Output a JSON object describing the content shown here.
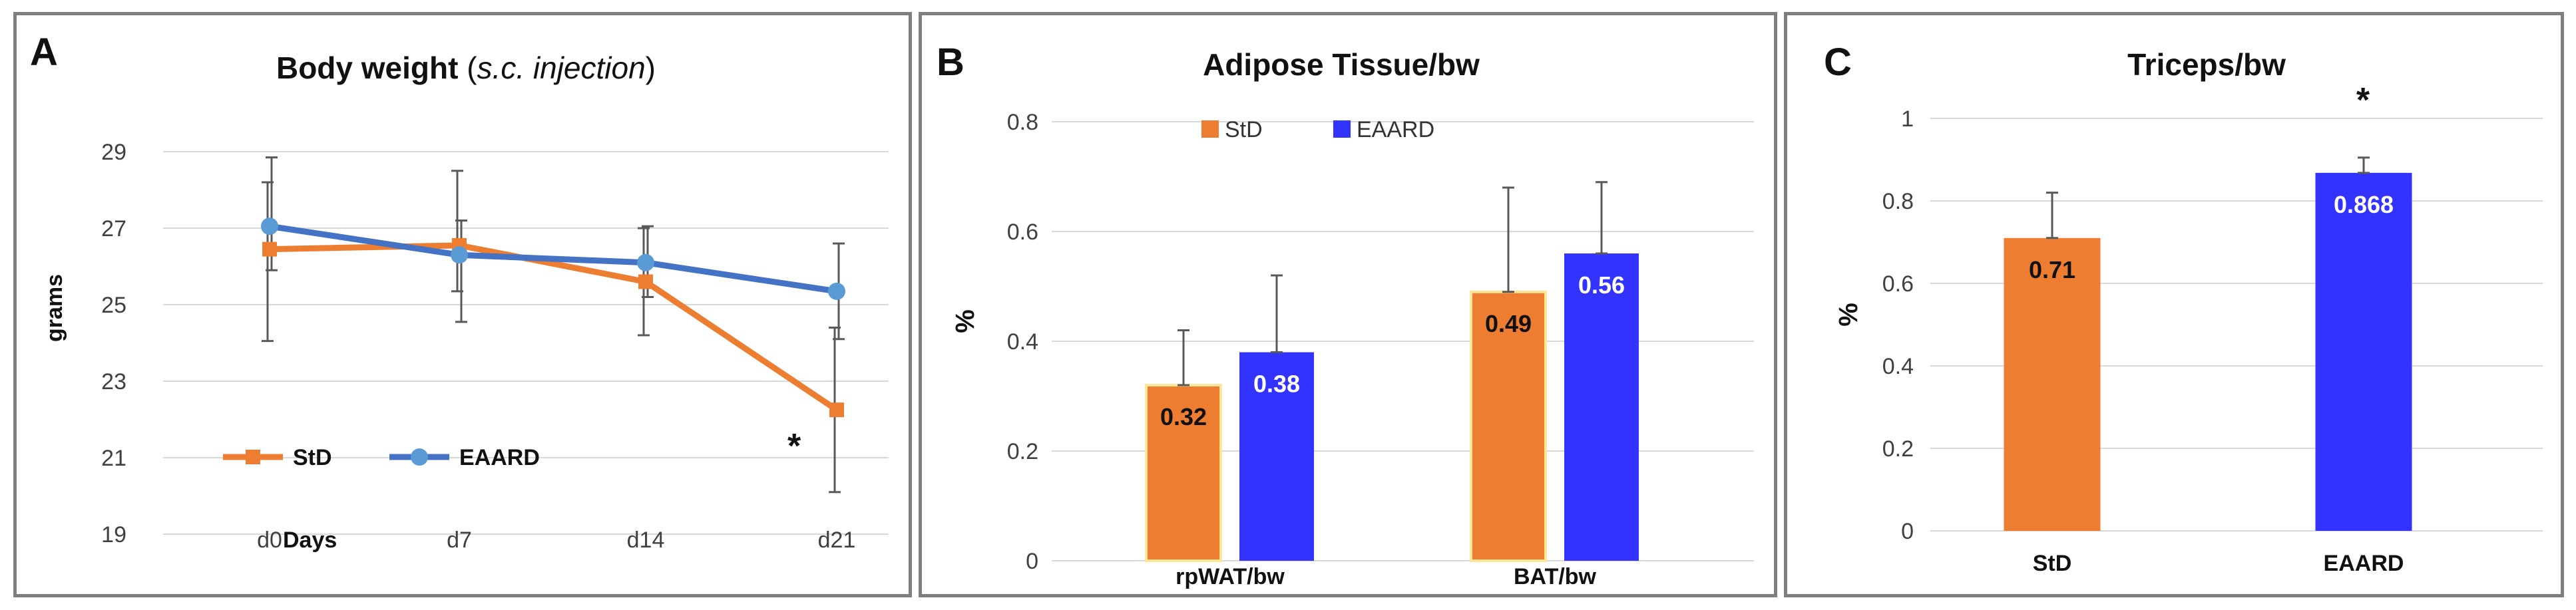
{
  "colors": {
    "std": "#ED7D31",
    "std_panel_a": "#ED7D31",
    "eaard_line": "#4472C4",
    "eaard_marker": "#5B9BD5",
    "eaard_bar": "#3333FF",
    "bar_outline": "#FFE699"
  },
  "chart_data": [
    {
      "panel": "A",
      "type": "line",
      "title": "Body weight",
      "title_note": "(s.c. injection)",
      "title_note_open": "(",
      "title_note_text": "s.c. injection",
      "title_note_close": ")",
      "xlabel": "Days",
      "ylabel": "grams",
      "x": [
        "d0",
        "d7",
        "d14",
        "d21"
      ],
      "yticks": [
        "19",
        "21",
        "23",
        "25",
        "27",
        "29"
      ],
      "ylim": [
        19,
        29
      ],
      "grid": true,
      "legend_position": "bottom-left",
      "series": [
        {
          "name": "StD",
          "color": "#ED7D31",
          "values": [
            26.45,
            26.55,
            25.6,
            22.25
          ],
          "err_low": [
            24.05,
            25.35,
            24.2,
            20.1
          ],
          "err_high": [
            28.2,
            28.5,
            27.0,
            24.4
          ]
        },
        {
          "name": "EAARD",
          "color": "#4472C4",
          "values": [
            27.05,
            26.3,
            26.1,
            25.35
          ],
          "err_low": [
            25.9,
            24.55,
            25.2,
            24.1
          ],
          "err_high": [
            28.85,
            27.2,
            27.05,
            26.6
          ]
        }
      ],
      "annotations": [
        {
          "text": "*",
          "x": "d21"
        }
      ]
    },
    {
      "panel": "B",
      "type": "bar",
      "title": "Adipose Tissue/bw",
      "ylabel": "%",
      "categories": [
        "rpWAT/bw",
        "BAT/bw"
      ],
      "yticks": [
        "0",
        "0.2",
        "0.4",
        "0.6",
        "0.8"
      ],
      "ylim": [
        0,
        0.8
      ],
      "grid": true,
      "legend_position": "top-left",
      "series": [
        {
          "name": "StD",
          "color": "#ED7D31",
          "values": [
            0.32,
            0.49
          ],
          "labels": [
            "0.32",
            "0.49"
          ],
          "err_high": [
            0.42,
            0.68
          ]
        },
        {
          "name": "EAARD",
          "color": "#3333FF",
          "values": [
            0.38,
            0.56
          ],
          "labels": [
            "0.38",
            "0.56"
          ],
          "err_high": [
            0.52,
            0.69
          ]
        }
      ]
    },
    {
      "panel": "C",
      "type": "bar",
      "title": "Triceps/bw",
      "ylabel": "%",
      "categories": [
        "StD",
        "EAARD"
      ],
      "yticks": [
        "0",
        "0.2",
        "0.4",
        "0.6",
        "0.8",
        "1"
      ],
      "ylim": [
        0,
        1
      ],
      "grid": true,
      "values": [
        0.71,
        0.868
      ],
      "labels": [
        "0.71",
        "0.868"
      ],
      "colors": [
        "#ED7D31",
        "#3333FF"
      ],
      "err_high": [
        0.82,
        0.905
      ],
      "annotations": [
        {
          "text": "*",
          "x": "EAARD"
        }
      ]
    }
  ]
}
